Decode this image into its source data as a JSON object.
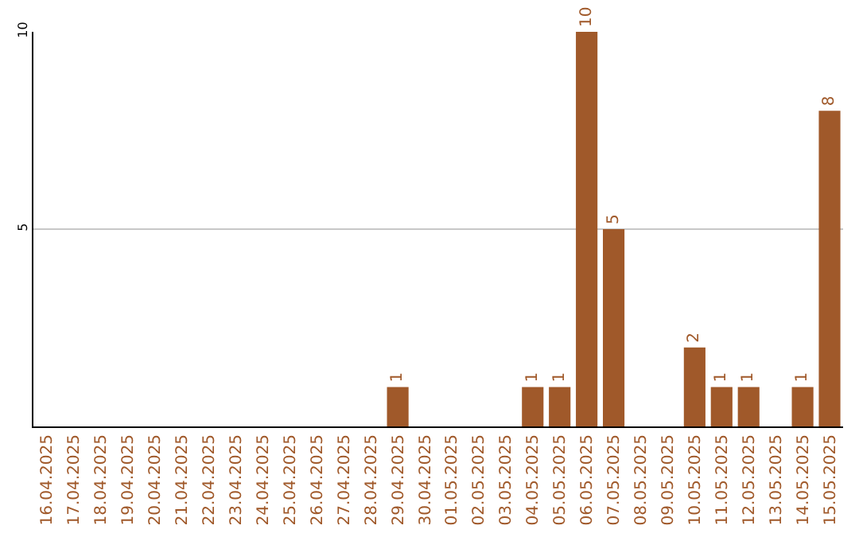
{
  "chart_data": {
    "type": "bar",
    "categories": [
      "16.04.2025",
      "17.04.2025",
      "18.04.2025",
      "19.04.2025",
      "20.04.2025",
      "21.04.2025",
      "22.04.2025",
      "23.04.2025",
      "24.04.2025",
      "25.04.2025",
      "26.04.2025",
      "27.04.2025",
      "28.04.2025",
      "29.04.2025",
      "30.04.2025",
      "01.05.2025",
      "02.05.2025",
      "03.05.2025",
      "04.05.2025",
      "05.05.2025",
      "06.05.2025",
      "07.05.2025",
      "08.05.2025",
      "09.05.2025",
      "10.05.2025",
      "11.05.2025",
      "12.05.2025",
      "13.05.2025",
      "14.05.2025",
      "15.05.2025"
    ],
    "values": [
      0,
      0,
      0,
      0,
      0,
      0,
      0,
      0,
      0,
      0,
      0,
      0,
      0,
      1,
      0,
      0,
      0,
      0,
      1,
      1,
      10,
      5,
      0,
      0,
      2,
      1,
      1,
      0,
      1,
      8
    ],
    "value_labels": [
      null,
      null,
      null,
      null,
      null,
      null,
      null,
      null,
      null,
      null,
      null,
      null,
      null,
      "1",
      null,
      null,
      null,
      null,
      "1",
      "1",
      "10",
      "5",
      null,
      null,
      "2",
      "1",
      "1",
      null,
      "1",
      "8"
    ],
    "color": "#a0592a",
    "ylim": [
      0,
      10
    ],
    "yticks": [
      5,
      10
    ],
    "grid": "y",
    "legend": false
  }
}
